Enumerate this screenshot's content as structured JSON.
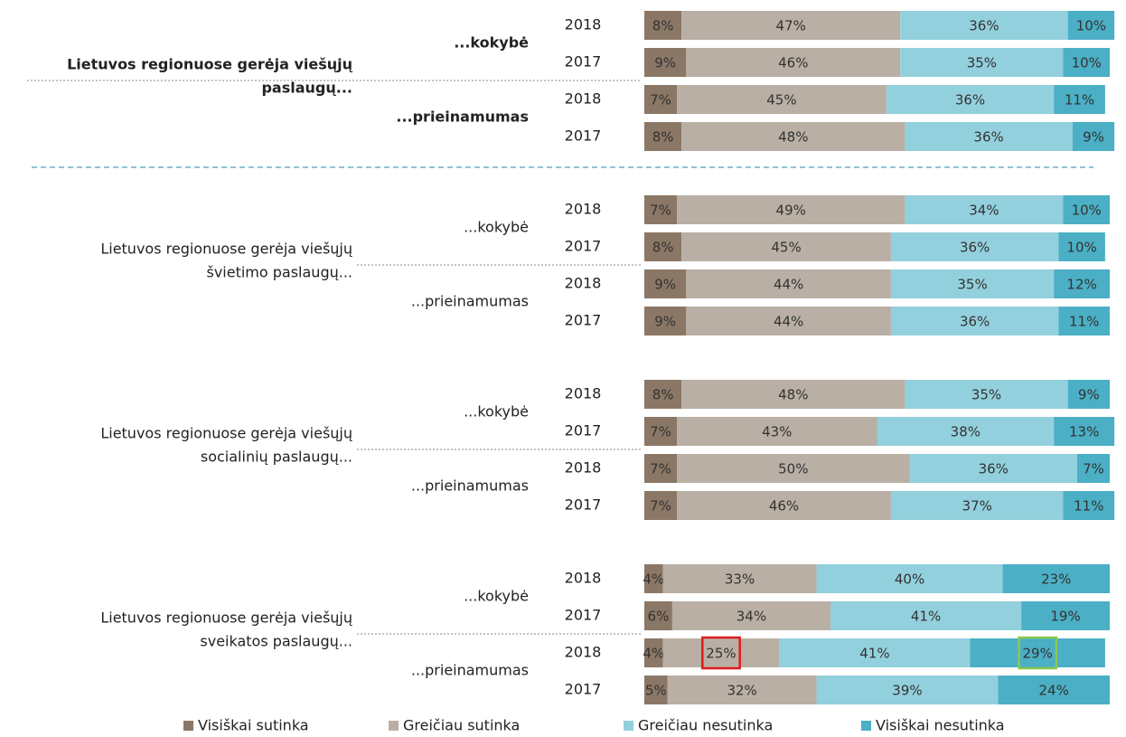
{
  "chart_data": {
    "type": "bar",
    "orientation": "horizontal",
    "stacked": true,
    "xlim": [
      0,
      100
    ],
    "groups": [
      {
        "label_lines": [
          "Lietuvos regionuose gerėja viešųjų",
          "paslaugų..."
        ],
        "bold": true,
        "subgroups": [
          "...kokybė",
          "...prieinamumas"
        ]
      },
      {
        "label_lines": [
          "Lietuvos regionuose gerėja viešųjų",
          "švietimo paslaugų..."
        ],
        "bold": false,
        "subgroups": [
          "...kokybė",
          "...prieinamumas"
        ]
      },
      {
        "label_lines": [
          "Lietuvos regionuose gerėja viešųjų",
          "socialinių paslaugų..."
        ],
        "bold": false,
        "subgroups": [
          "...kokybė",
          "...prieinamumas"
        ]
      },
      {
        "label_lines": [
          "Lietuvos regionuose gerėja viešųjų",
          "sveikatos paslaugų..."
        ],
        "bold": false,
        "subgroups": [
          "...kokybė",
          "...prieinamumas"
        ]
      }
    ],
    "categories": [
      "2018",
      "2017",
      "2018",
      "2017",
      "2018",
      "2017",
      "2018",
      "2017",
      "2018",
      "2017",
      "2018",
      "2017",
      "2018",
      "2017",
      "2018",
      "2017"
    ],
    "series": [
      {
        "name": "Visiškai sutinka",
        "color": "#8b7765",
        "values": [
          8,
          9,
          7,
          8,
          7,
          8,
          9,
          9,
          8,
          7,
          7,
          7,
          4,
          6,
          4,
          5
        ],
        "value_labels": [
          "8%",
          "9%",
          "7%",
          "8%",
          "7%",
          "8%",
          "9%",
          "9%",
          "8%",
          "7%",
          "7%",
          "7%",
          "4%",
          "6%",
          "4%",
          "5%"
        ]
      },
      {
        "name": "Greičiau sutinka",
        "color": "#b9afa4",
        "values": [
          47,
          46,
          45,
          48,
          49,
          45,
          44,
          44,
          48,
          43,
          50,
          46,
          33,
          34,
          25,
          32
        ],
        "value_labels": [
          "47%",
          "46%",
          "45%",
          "48%",
          "49%",
          "45%",
          "44%",
          "44%",
          "48%",
          "43%",
          "50%",
          "46%",
          "33%",
          "34%",
          "25%",
          "32%"
        ]
      },
      {
        "name": "Greičiau nesutinka",
        "color": "#93d0dd",
        "values": [
          36,
          35,
          36,
          36,
          34,
          36,
          35,
          36,
          35,
          38,
          36,
          37,
          40,
          41,
          41,
          39
        ],
        "value_labels": [
          "36%",
          "35%",
          "36%",
          "36%",
          "34%",
          "36%",
          "35%",
          "36%",
          "35%",
          "38%",
          "36%",
          "37%",
          "40%",
          "41%",
          "41%",
          "39%"
        ]
      },
      {
        "name": "Visiškai nesutinka",
        "color": "#4bafc5",
        "values": [
          10,
          10,
          11,
          9,
          10,
          10,
          12,
          11,
          9,
          13,
          7,
          11,
          23,
          19,
          29,
          24
        ],
        "value_labels": [
          "10%",
          "10%",
          "11%",
          "9%",
          "10%",
          "10%",
          "12%",
          "11%",
          "9%",
          "13%",
          "7%",
          "11%",
          "23%",
          "19%",
          "29%",
          "24%"
        ]
      }
    ]
  }
}
